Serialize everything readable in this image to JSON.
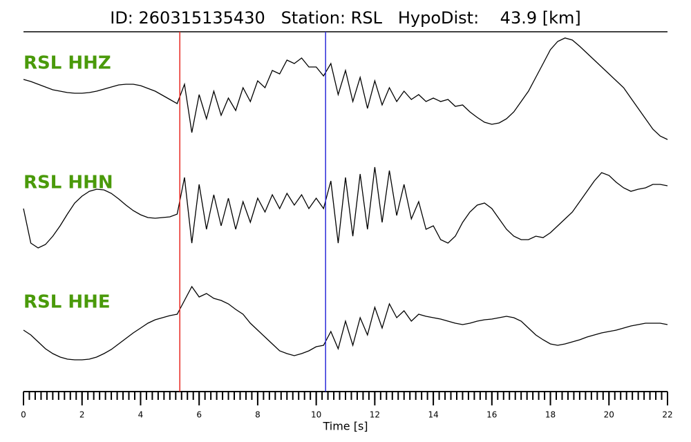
{
  "chart_data": {
    "type": "line",
    "title": "ID: 260315135430   Station: RSL   HypoDist:    43.9 [km]",
    "xlabel": "Time [s]",
    "xlim": [
      0,
      22
    ],
    "xticks": [
      0,
      2,
      4,
      6,
      8,
      10,
      12,
      14,
      16,
      18,
      20,
      22
    ],
    "minor_tick_interval": 0.2,
    "label_color": "#4a9a0a",
    "markers": [
      {
        "x": 5.34,
        "color": "#e8271f"
      },
      {
        "x": 10.32,
        "color": "#2b2bd9"
      }
    ],
    "x": [
      0,
      0.25,
      0.5,
      0.75,
      1,
      1.25,
      1.5,
      1.75,
      2,
      2.25,
      2.5,
      2.75,
      3,
      3.25,
      3.5,
      3.75,
      4,
      4.25,
      4.5,
      4.75,
      5,
      5.25,
      5.5,
      5.75,
      6,
      6.25,
      6.5,
      6.75,
      7,
      7.25,
      7.5,
      7.75,
      8,
      8.25,
      8.5,
      8.75,
      9,
      9.25,
      9.5,
      9.75,
      10,
      10.25,
      10.5,
      10.75,
      11,
      11.25,
      11.5,
      11.75,
      12,
      12.25,
      12.5,
      12.75,
      13,
      13.25,
      13.5,
      13.75,
      14,
      14.25,
      14.5,
      14.75,
      15,
      15.25,
      15.5,
      15.75,
      16,
      16.25,
      16.5,
      16.75,
      17,
      17.25,
      17.5,
      17.75,
      18,
      18.25,
      18.5,
      18.75,
      19,
      19.25,
      19.5,
      19.75,
      20,
      20.25,
      20.5,
      20.75,
      21,
      21.25,
      21.5,
      21.75,
      22
    ],
    "series": [
      {
        "name": "RSL HHZ",
        "color": "#000000",
        "ylim": [
          -85,
          85
        ],
        "values": [
          17,
          14,
          10,
          6,
          2,
          0,
          -2,
          -3,
          -3,
          -2,
          0,
          3,
          6,
          9,
          10,
          10,
          8,
          4,
          0,
          -6,
          -12,
          -18,
          10,
          -60,
          -5,
          -40,
          0,
          -35,
          -10,
          -28,
          5,
          -15,
          15,
          5,
          30,
          25,
          45,
          40,
          48,
          35,
          35,
          22,
          40,
          -5,
          30,
          -15,
          20,
          -25,
          15,
          -20,
          5,
          -15,
          0,
          -12,
          -5,
          -15,
          -10,
          -15,
          -12,
          -22,
          -20,
          -30,
          -38,
          -45,
          -48,
          -46,
          -40,
          -30,
          -15,
          0,
          20,
          40,
          60,
          72,
          77,
          74,
          65,
          55,
          45,
          35,
          25,
          15,
          5,
          -10,
          -25,
          -40,
          -55,
          -65,
          -70
        ]
      },
      {
        "name": "RSL HHN",
        "color": "#000000",
        "ylim": [
          -85,
          85
        ],
        "values": [
          0,
          -50,
          -57,
          -52,
          -40,
          -25,
          -8,
          8,
          18,
          25,
          28,
          27,
          22,
          14,
          5,
          -3,
          -9,
          -13,
          -14,
          -13,
          -12,
          -8,
          45,
          -50,
          35,
          -30,
          20,
          -25,
          15,
          -30,
          10,
          -20,
          15,
          -5,
          20,
          0,
          22,
          5,
          20,
          0,
          15,
          0,
          40,
          -50,
          45,
          -40,
          50,
          -30,
          60,
          -20,
          55,
          -10,
          35,
          -15,
          10,
          -30,
          -25,
          -45,
          -50,
          -40,
          -20,
          -5,
          5,
          8,
          0,
          -15,
          -30,
          -40,
          -45,
          -45,
          -40,
          -42,
          -35,
          -25,
          -15,
          -5,
          10,
          25,
          40,
          52,
          48,
          38,
          30,
          25,
          28,
          30,
          35,
          35,
          33
        ]
      },
      {
        "name": "RSL HHE",
        "color": "#000000",
        "ylim": [
          -85,
          85
        ],
        "values": [
          -18,
          -25,
          -35,
          -45,
          -52,
          -57,
          -60,
          -61,
          -61,
          -60,
          -57,
          -52,
          -46,
          -38,
          -30,
          -22,
          -15,
          -8,
          -3,
          0,
          3,
          5,
          25,
          45,
          30,
          35,
          28,
          25,
          20,
          12,
          5,
          -8,
          -18,
          -28,
          -38,
          -48,
          -52,
          -55,
          -52,
          -48,
          -42,
          -40,
          -20,
          -45,
          -5,
          -40,
          0,
          -25,
          15,
          -15,
          20,
          0,
          10,
          -5,
          5,
          2,
          0,
          -2,
          -5,
          -8,
          -10,
          -8,
          -5,
          -3,
          -2,
          0,
          2,
          0,
          -5,
          -15,
          -25,
          -32,
          -38,
          -40,
          -38,
          -35,
          -32,
          -28,
          -25,
          -22,
          -20,
          -18,
          -15,
          -12,
          -10,
          -8,
          -8,
          -8,
          -10
        ]
      }
    ]
  }
}
